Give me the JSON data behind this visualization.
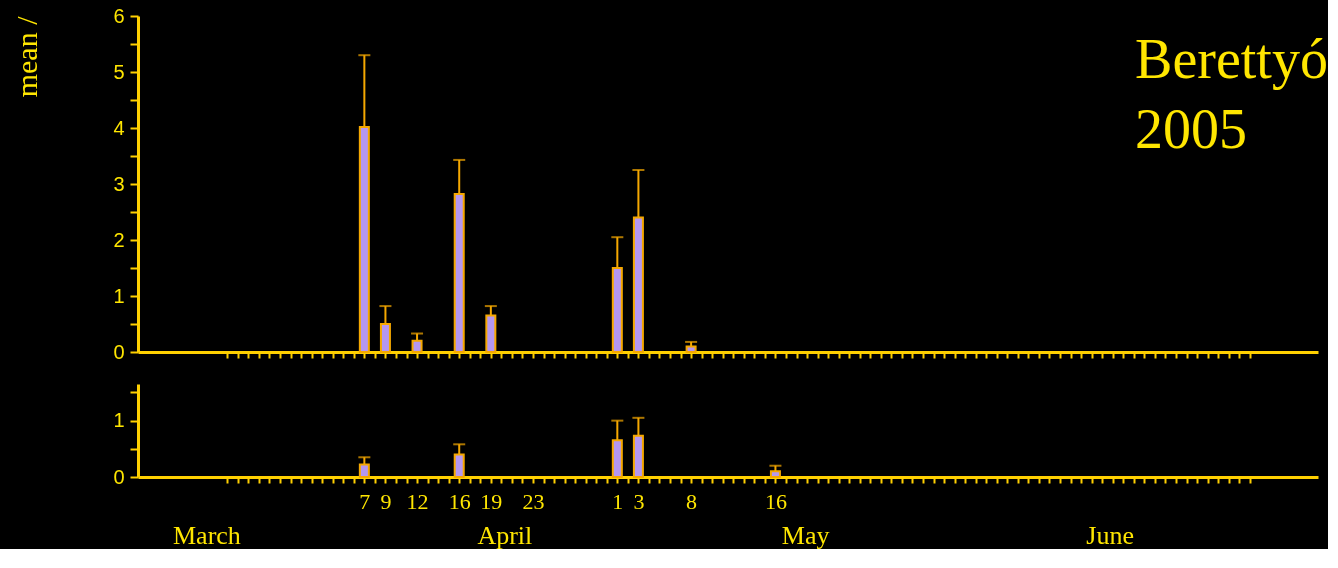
{
  "chart_data": [
    {
      "type": "bar",
      "ylabel": "mean /",
      "annotations": [
        "Berettyó\n2005"
      ],
      "x": [
        "2005-04-07",
        "2005-04-09",
        "2005-04-12",
        "2005-04-16",
        "2005-04-19",
        "2005-04-23",
        "2005-05-01",
        "2005-05-03",
        "2005-05-08"
      ],
      "values": [
        4.02,
        0.5,
        0.2,
        2.82,
        0.65,
        null,
        1.5,
        2.4,
        0.1
      ],
      "errors": [
        [
          4.02,
          5.3
        ],
        [
          0.5,
          0.82
        ],
        [
          0.2,
          0.33
        ],
        [
          2.82,
          3.43
        ],
        [
          0.65,
          0.82
        ],
        null,
        [
          1.5,
          2.05
        ],
        [
          2.4,
          3.25
        ],
        [
          0.1,
          0.18
        ]
      ],
      "color": "#b497f0",
      "xlim": [
        "2005-03-17",
        "2005-07-06"
      ],
      "ylim": [
        0,
        6
      ],
      "yticks": [
        0,
        {
          "value": 0.5,
          "label": null
        },
        1,
        {
          "value": 1.5,
          "label": null
        },
        2,
        {
          "value": 2.5,
          "label": null
        },
        3,
        {
          "value": 3.5,
          "label": null
        },
        4,
        {
          "value": 4.5,
          "label": null
        },
        5,
        {
          "value": 5.5,
          "label": null
        },
        6
      ],
      "xticks": [
        {
          "value": "2005-03-25",
          "label": null
        },
        {
          "value": "2005-03-26",
          "label": null
        },
        {
          "value": "2005-03-27",
          "label": null
        },
        {
          "value": "2005-03-28",
          "label": null
        },
        {
          "value": "2005-03-29",
          "label": null
        },
        {
          "value": "2005-03-30",
          "label": null
        },
        {
          "value": "2005-03-31",
          "label": null
        },
        {
          "value": "2005-04-01",
          "label": null
        },
        {
          "value": "2005-04-02",
          "label": null
        },
        {
          "value": "2005-04-03",
          "label": null
        },
        {
          "value": "2005-04-04",
          "label": null
        },
        {
          "value": "2005-04-05",
          "label": null
        },
        {
          "value": "2005-04-06",
          "label": null
        },
        {
          "value": "2005-04-07",
          "label": null
        },
        {
          "value": "2005-04-08",
          "label": null
        },
        {
          "value": "2005-04-09",
          "label": null
        },
        {
          "value": "2005-04-10",
          "label": null
        },
        {
          "value": "2005-04-11",
          "label": null
        },
        {
          "value": "2005-04-12",
          "label": null
        },
        {
          "value": "2005-04-13",
          "label": null
        },
        {
          "value": "2005-04-14",
          "label": null
        },
        {
          "value": "2005-04-15",
          "label": null
        },
        {
          "value": "2005-04-16",
          "label": null
        },
        {
          "value": "2005-04-17",
          "label": null
        },
        {
          "value": "2005-04-18",
          "label": null
        },
        {
          "value": "2005-04-19",
          "label": null
        },
        {
          "value": "2005-04-20",
          "label": null
        },
        {
          "value": "2005-04-21",
          "label": null
        },
        {
          "value": "2005-04-22",
          "label": null
        },
        {
          "value": "2005-04-23",
          "label": null
        },
        {
          "value": "2005-04-24",
          "label": null
        },
        {
          "value": "2005-04-25",
          "label": null
        },
        {
          "value": "2005-04-26",
          "label": null
        },
        {
          "value": "2005-04-27",
          "label": null
        },
        {
          "value": "2005-04-28",
          "label": null
        },
        {
          "value": "2005-04-29",
          "label": null
        },
        {
          "value": "2005-04-30",
          "label": null
        },
        {
          "value": "2005-05-01",
          "label": null
        },
        {
          "value": "2005-05-02",
          "label": null
        },
        {
          "value": "2005-05-03",
          "label": null
        },
        {
          "value": "2005-05-04",
          "label": null
        },
        {
          "value": "2005-05-05",
          "label": null
        },
        {
          "value": "2005-05-06",
          "label": null
        },
        {
          "value": "2005-05-07",
          "label": null
        },
        {
          "value": "2005-05-08",
          "label": null
        },
        {
          "value": "2005-05-09",
          "label": null
        },
        {
          "value": "2005-05-10",
          "label": null
        },
        {
          "value": "2005-05-11",
          "label": null
        },
        {
          "value": "2005-05-12",
          "label": null
        },
        {
          "value": "2005-05-13",
          "label": null
        },
        {
          "value": "2005-05-14",
          "label": null
        },
        {
          "value": "2005-05-15",
          "label": null
        },
        {
          "value": "2005-05-16",
          "label": null
        },
        {
          "value": "2005-05-17",
          "label": null
        },
        {
          "value": "2005-05-18",
          "label": null
        },
        {
          "value": "2005-05-19",
          "label": null
        },
        {
          "value": "2005-05-20",
          "label": null
        },
        {
          "value": "2005-05-21",
          "label": null
        },
        {
          "value": "2005-05-22",
          "label": null
        },
        {
          "value": "2005-05-23",
          "label": null
        },
        {
          "value": "2005-05-24",
          "label": null
        },
        {
          "value": "2005-05-25",
          "label": null
        },
        {
          "value": "2005-05-26",
          "label": null
        },
        {
          "value": "2005-05-27",
          "label": null
        },
        {
          "value": "2005-05-28",
          "label": null
        },
        {
          "value": "2005-05-29",
          "label": null
        },
        {
          "value": "2005-05-30",
          "label": null
        },
        {
          "value": "2005-05-31",
          "label": null
        },
        {
          "value": "2005-06-01",
          "label": null
        },
        {
          "value": "2005-06-02",
          "label": null
        },
        {
          "value": "2005-06-03",
          "label": null
        },
        {
          "value": "2005-06-04",
          "label": null
        },
        {
          "value": "2005-06-05",
          "label": null
        },
        {
          "value": "2005-06-06",
          "label": null
        },
        {
          "value": "2005-06-07",
          "label": null
        },
        {
          "value": "2005-06-08",
          "label": null
        },
        {
          "value": "2005-06-09",
          "label": null
        },
        {
          "value": "2005-06-10",
          "label": null
        },
        {
          "value": "2005-06-11",
          "label": null
        },
        {
          "value": "2005-06-12",
          "label": null
        },
        {
          "value": "2005-06-13",
          "label": null
        },
        {
          "value": "2005-06-14",
          "label": null
        },
        {
          "value": "2005-06-15",
          "label": null
        },
        {
          "value": "2005-06-16",
          "label": null
        },
        {
          "value": "2005-06-17",
          "label": null
        },
        {
          "value": "2005-06-18",
          "label": null
        },
        {
          "value": "2005-06-19",
          "label": null
        },
        {
          "value": "2005-06-20",
          "label": null
        },
        {
          "value": "2005-06-21",
          "label": null
        },
        {
          "value": "2005-06-22",
          "label": null
        },
        {
          "value": "2005-06-23",
          "label": null
        },
        {
          "value": "2005-06-24",
          "label": null
        },
        {
          "value": "2005-06-25",
          "label": null
        },
        {
          "value": "2005-06-26",
          "label": null
        },
        {
          "value": "2005-06-27",
          "label": null
        },
        {
          "value": "2005-06-28",
          "label": null
        },
        {
          "value": "2005-06-29",
          "label": null
        },
        {
          "value": "2005-06-30",
          "label": null
        }
      ],
      "tick_labels": "y"
    },
    {
      "type": "bar",
      "annotations": [
        "March",
        "April",
        "May",
        "June"
      ],
      "x": [
        "2005-04-07",
        "2005-04-09",
        "2005-04-12",
        "2005-04-16",
        "2005-04-19",
        "2005-04-23",
        "2005-05-01",
        "2005-05-03",
        "2005-05-08",
        "2005-05-16"
      ],
      "values": [
        0.22,
        null,
        null,
        0.4,
        null,
        null,
        0.65,
        0.73,
        null,
        0.1
      ],
      "errors": [
        [
          0.22,
          0.35
        ],
        null,
        null,
        [
          0.4,
          0.58
        ],
        null,
        null,
        [
          0.65,
          1.0
        ],
        [
          0.73,
          1.05
        ],
        null,
        [
          0.1,
          0.2
        ]
      ],
      "color": "#b497f0",
      "xlim": [
        "2005-03-17",
        "2005-07-06"
      ],
      "ylim": [
        0,
        1.65
      ],
      "yticks": [
        0,
        {
          "value": 0.5,
          "label": null
        },
        1,
        {
          "value": 1.5,
          "label": null
        }
      ],
      "xticks": [
        {
          "value": "2005-03-25",
          "label": null
        },
        {
          "value": "2005-03-26",
          "label": null
        },
        {
          "value": "2005-03-27",
          "label": null
        },
        {
          "value": "2005-03-28",
          "label": null
        },
        {
          "value": "2005-03-29",
          "label": null
        },
        {
          "value": "2005-03-30",
          "label": null
        },
        {
          "value": "2005-03-31",
          "label": null
        },
        {
          "value": "2005-04-01",
          "label": null
        },
        {
          "value": "2005-04-02",
          "label": null
        },
        {
          "value": "2005-04-03",
          "label": null
        },
        {
          "value": "2005-04-04",
          "label": null
        },
        {
          "value": "2005-04-05",
          "label": null
        },
        {
          "value": "2005-04-06",
          "label": null
        },
        {
          "value": "2005-04-07",
          "label": "7"
        },
        {
          "value": "2005-04-08",
          "label": null
        },
        {
          "value": "2005-04-09",
          "label": "9"
        },
        {
          "value": "2005-04-10",
          "label": null
        },
        {
          "value": "2005-04-11",
          "label": null
        },
        {
          "value": "2005-04-12",
          "label": "12"
        },
        {
          "value": "2005-04-13",
          "label": null
        },
        {
          "value": "2005-04-14",
          "label": null
        },
        {
          "value": "2005-04-15",
          "label": null
        },
        {
          "value": "2005-04-16",
          "label": "16"
        },
        {
          "value": "2005-04-17",
          "label": null
        },
        {
          "value": "2005-04-18",
          "label": null
        },
        {
          "value": "2005-04-19",
          "label": "19"
        },
        {
          "value": "2005-04-20",
          "label": null
        },
        {
          "value": "2005-04-21",
          "label": null
        },
        {
          "value": "2005-04-22",
          "label": null
        },
        {
          "value": "2005-04-23",
          "label": "23"
        },
        {
          "value": "2005-04-24",
          "label": null
        },
        {
          "value": "2005-04-25",
          "label": null
        },
        {
          "value": "2005-04-26",
          "label": null
        },
        {
          "value": "2005-04-27",
          "label": null
        },
        {
          "value": "2005-04-28",
          "label": null
        },
        {
          "value": "2005-04-29",
          "label": null
        },
        {
          "value": "2005-04-30",
          "label": null
        },
        {
          "value": "2005-05-01",
          "label": "1"
        },
        {
          "value": "2005-05-02",
          "label": null
        },
        {
          "value": "2005-05-03",
          "label": "3"
        },
        {
          "value": "2005-05-04",
          "label": null
        },
        {
          "value": "2005-05-05",
          "label": null
        },
        {
          "value": "2005-05-06",
          "label": null
        },
        {
          "value": "2005-05-07",
          "label": null
        },
        {
          "value": "2005-05-08",
          "label": "8"
        },
        {
          "value": "2005-05-09",
          "label": null
        },
        {
          "value": "2005-05-10",
          "label": null
        },
        {
          "value": "2005-05-11",
          "label": null
        },
        {
          "value": "2005-05-12",
          "label": null
        },
        {
          "value": "2005-05-13",
          "label": null
        },
        {
          "value": "2005-05-14",
          "label": null
        },
        {
          "value": "2005-05-15",
          "label": null
        },
        {
          "value": "2005-05-16",
          "label": "16"
        },
        {
          "value": "2005-05-17",
          "label": null
        },
        {
          "value": "2005-05-18",
          "label": null
        },
        {
          "value": "2005-05-19",
          "label": null
        },
        {
          "value": "2005-05-20",
          "label": null
        },
        {
          "value": "2005-05-21",
          "label": null
        },
        {
          "value": "2005-05-22",
          "label": null
        },
        {
          "value": "2005-05-23",
          "label": null
        },
        {
          "value": "2005-05-24",
          "label": null
        },
        {
          "value": "2005-05-25",
          "label": null
        },
        {
          "value": "2005-05-26",
          "label": null
        },
        {
          "value": "2005-05-27",
          "label": null
        },
        {
          "value": "2005-05-28",
          "label": null
        },
        {
          "value": "2005-05-29",
          "label": null
        },
        {
          "value": "2005-05-30",
          "label": null
        },
        {
          "value": "2005-05-31",
          "label": null
        },
        {
          "value": "2005-06-01",
          "label": null
        },
        {
          "value": "2005-06-02",
          "label": null
        },
        {
          "value": "2005-06-03",
          "label": null
        },
        {
          "value": "2005-06-04",
          "label": null
        },
        {
          "value": "2005-06-05",
          "label": null
        },
        {
          "value": "2005-06-06",
          "label": null
        },
        {
          "value": "2005-06-07",
          "label": null
        },
        {
          "value": "2005-06-08",
          "label": null
        },
        {
          "value": "2005-06-09",
          "label": null
        },
        {
          "value": "2005-06-10",
          "label": null
        },
        {
          "value": "2005-06-11",
          "label": null
        },
        {
          "value": "2005-06-12",
          "label": null
        },
        {
          "value": "2005-06-13",
          "label": null
        },
        {
          "value": "2005-06-14",
          "label": null
        },
        {
          "value": "2005-06-15",
          "label": null
        },
        {
          "value": "2005-06-16",
          "label": null
        },
        {
          "value": "2005-06-17",
          "label": null
        },
        {
          "value": "2005-06-18",
          "label": null
        },
        {
          "value": "2005-06-19",
          "label": null
        },
        {
          "value": "2005-06-20",
          "label": null
        },
        {
          "value": "2005-06-21",
          "label": null
        },
        {
          "value": "2005-06-22",
          "label": null
        },
        {
          "value": "2005-06-23",
          "label": null
        },
        {
          "value": "2005-06-24",
          "label": null
        },
        {
          "value": "2005-06-25",
          "label": null
        },
        {
          "value": "2005-06-26",
          "label": null
        },
        {
          "value": "2005-06-27",
          "label": null
        },
        {
          "value": "2005-06-28",
          "label": null
        },
        {
          "value": "2005-06-29",
          "label": null
        },
        {
          "value": "2005-06-30",
          "label": null
        }
      ]
    }
  ]
}
